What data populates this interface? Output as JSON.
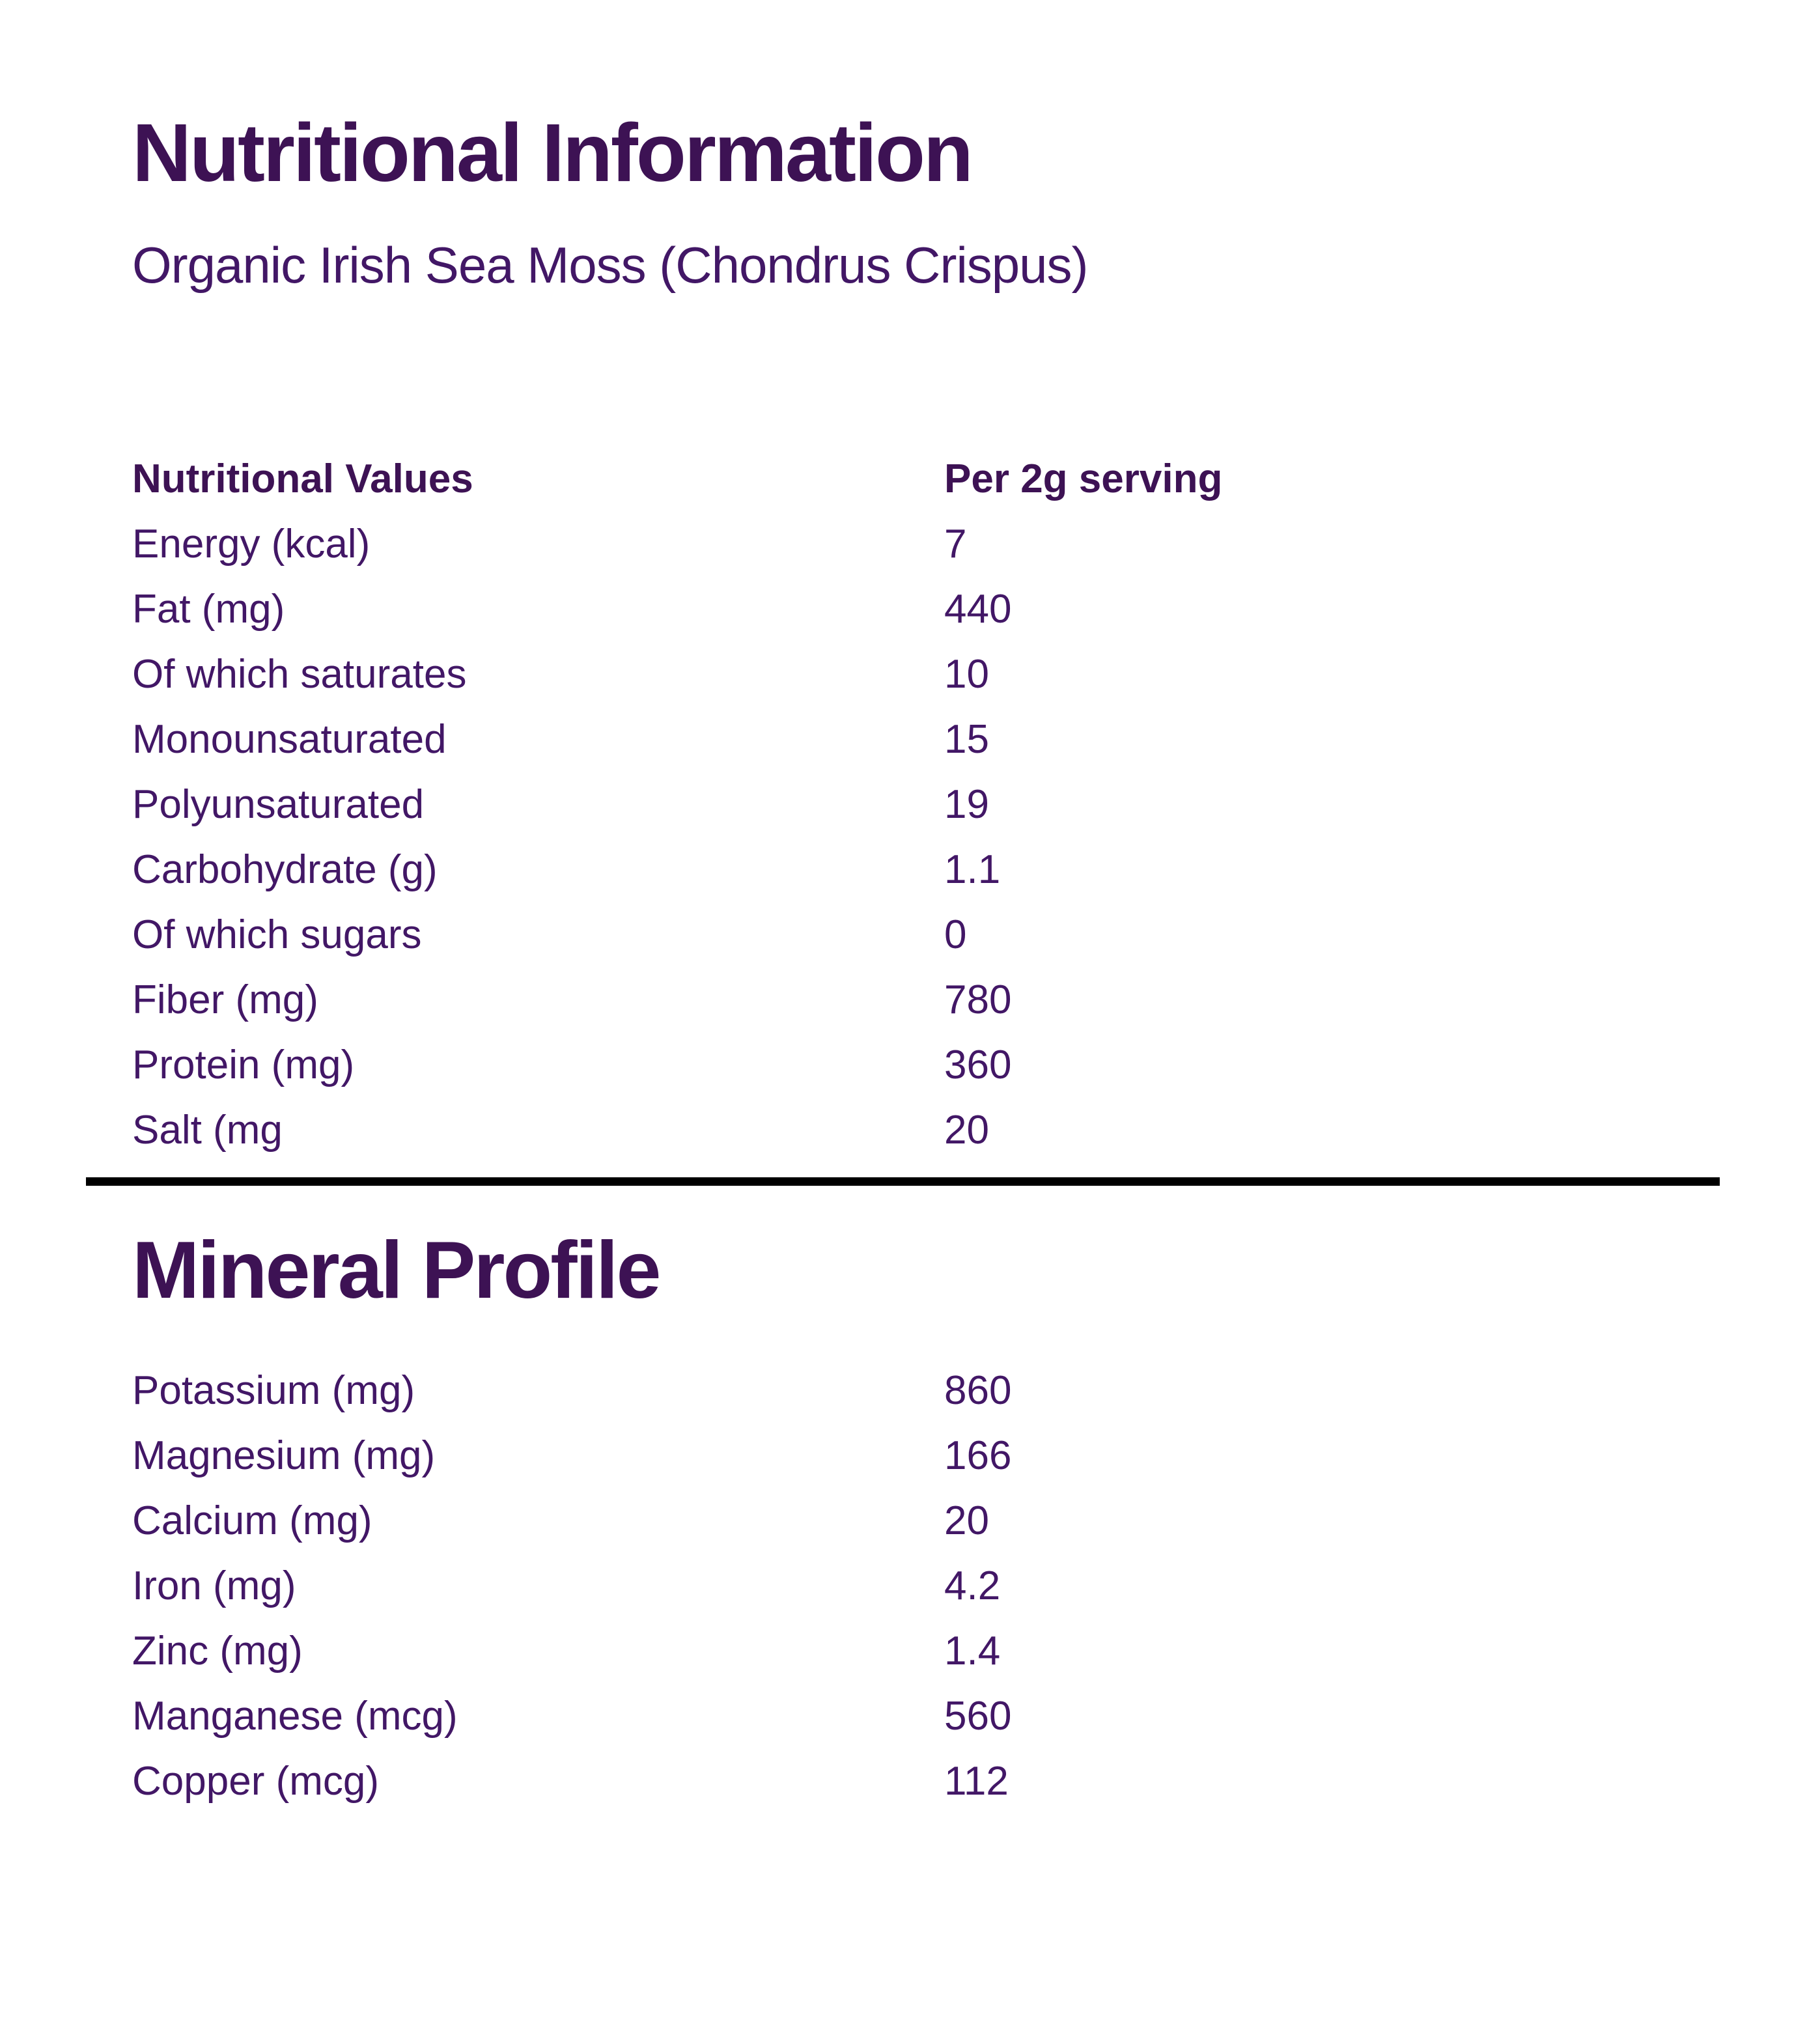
{
  "page": {
    "title": "Nutritional Information",
    "subtitle": "Organic Irish Sea Moss (Chondrus Crispus)"
  },
  "colors": {
    "heading": "#3D1254",
    "body_text": "#421766",
    "divider": "#000000",
    "background": "#FFFFFF"
  },
  "nutrition_table": {
    "header": {
      "label": "Nutritional Values",
      "value": "Per 2g serving"
    },
    "rows": [
      {
        "label": "Energy (kcal)",
        "value": "7"
      },
      {
        "label": "Fat (mg)",
        "value": "440"
      },
      {
        "label": "Of which saturates",
        "value": "10"
      },
      {
        "label": "Monounsaturated",
        "value": "15"
      },
      {
        "label": "Polyunsaturated",
        "value": "19"
      },
      {
        "label": "Carbohydrate (g)",
        "value": "1.1"
      },
      {
        "label": "Of which sugars",
        "value": "0"
      },
      {
        "label": "Fiber (mg)",
        "value": "780"
      },
      {
        "label": "Protein (mg)",
        "value": "360"
      },
      {
        "label": "Salt (mg",
        "value": "20"
      }
    ]
  },
  "mineral_section": {
    "title": "Mineral Profile",
    "rows": [
      {
        "label": "Potassium (mg)",
        "value": "860"
      },
      {
        "label": "Magnesium (mg)",
        "value": "166"
      },
      {
        "label": "Calcium (mg)",
        "value": "20"
      },
      {
        "label": "Iron (mg)",
        "value": "4.2"
      },
      {
        "label": "Zinc (mg)",
        "value": "1.4"
      },
      {
        "label": "Manganese (mcg)",
        "value": "560"
      },
      {
        "label": "Copper (mcg)",
        "value": "112"
      }
    ]
  }
}
